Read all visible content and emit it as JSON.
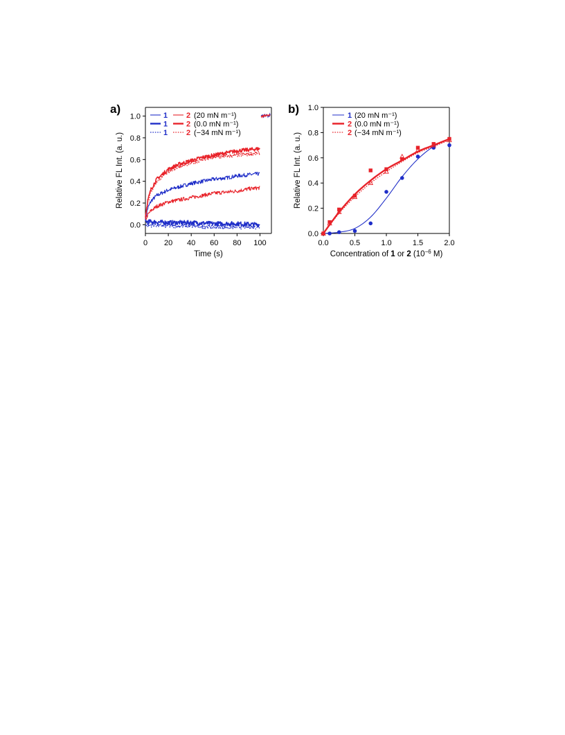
{
  "colors": {
    "blue": "#1f2ec8",
    "red": "#e8232a"
  },
  "chart_data": [
    {
      "panel": "a)",
      "type": "line",
      "xlabel": "Time (s)",
      "ylabel": "Relative FL Int. (a. u.)",
      "xlim": [
        0,
        110
      ],
      "ylim": [
        -0.08,
        1.08
      ],
      "xticks": [
        "0",
        "20",
        "40",
        "60",
        "80",
        "100"
      ],
      "yticks": [
        "0.0",
        "0.2",
        "0.4",
        "0.6",
        "0.8",
        "1.0"
      ],
      "grid": false,
      "legend_position": "top-left",
      "legend": [
        {
          "a": "1",
          "b": "2",
          "label": "(20 mN m⁻¹)",
          "style": "thin-solid"
        },
        {
          "a": "1",
          "b": "2",
          "label": "(0.0 mN m⁻¹)",
          "style": "thick-solid"
        },
        {
          "a": "1",
          "b": "2",
          "label": "(−34 mN m⁻¹)",
          "style": "dotted"
        }
      ],
      "series": [
        {
          "legend_index": 0,
          "compound": "1",
          "color": "blue",
          "style": "thin-solid",
          "x": [
            0,
            2,
            5,
            10,
            20,
            30,
            40,
            50,
            60,
            70,
            80,
            90,
            100
          ],
          "y": [
            0.05,
            0.15,
            0.22,
            0.27,
            0.32,
            0.35,
            0.38,
            0.4,
            0.42,
            0.43,
            0.45,
            0.46,
            0.47
          ]
        },
        {
          "legend_index": 0,
          "compound": "2",
          "color": "red",
          "style": "thin-solid",
          "x": [
            0,
            2,
            5,
            10,
            20,
            30,
            40,
            50,
            60,
            70,
            80,
            90,
            100
          ],
          "y": [
            0.04,
            0.09,
            0.13,
            0.17,
            0.21,
            0.23,
            0.25,
            0.27,
            0.29,
            0.3,
            0.31,
            0.33,
            0.34
          ]
        },
        {
          "legend_index": 1,
          "compound": "1",
          "color": "blue",
          "style": "thick-solid",
          "x": [
            0,
            20,
            40,
            60,
            80,
            100
          ],
          "y": [
            0.03,
            0.02,
            0.02,
            0.01,
            0.01,
            0.0
          ]
        },
        {
          "legend_index": 1,
          "compound": "2",
          "color": "red",
          "style": "thick-solid",
          "x": [
            0,
            2,
            5,
            10,
            20,
            30,
            40,
            50,
            60,
            70,
            80,
            90,
            100
          ],
          "y": [
            0.08,
            0.22,
            0.33,
            0.42,
            0.51,
            0.56,
            0.59,
            0.62,
            0.64,
            0.66,
            0.68,
            0.69,
            0.7
          ]
        },
        {
          "legend_index": 2,
          "compound": "1",
          "color": "blue",
          "style": "dotted",
          "x": [
            0,
            20,
            40,
            60,
            80,
            100
          ],
          "y": [
            0.0,
            -0.01,
            -0.01,
            -0.02,
            -0.02,
            -0.02
          ]
        },
        {
          "legend_index": 2,
          "compound": "2",
          "color": "red",
          "style": "dotted",
          "x": [
            0,
            2,
            5,
            10,
            20,
            30,
            40,
            50,
            60,
            70,
            80,
            90,
            100
          ],
          "y": [
            0.07,
            0.2,
            0.31,
            0.4,
            0.49,
            0.54,
            0.57,
            0.6,
            0.62,
            0.63,
            0.64,
            0.65,
            0.66
          ]
        },
        {
          "compound": "reference",
          "color": "mixed",
          "style": "thin-solid",
          "x": [
            101,
            103,
            105,
            107,
            109
          ],
          "y": [
            1.0,
            1.0,
            1.01,
            1.0,
            1.01
          ]
        }
      ]
    },
    {
      "panel": "b)",
      "type": "scatter",
      "xlabel": "Concentration of 1 or 2 (10⁻⁶ M)",
      "xlabel_parts": [
        "Concentration of ",
        "1",
        " or ",
        "2",
        " (10",
        "−6",
        " M)"
      ],
      "ylabel": "Relative FL Int. (a. u.)",
      "xlim": [
        0,
        2.0
      ],
      "ylim": [
        0,
        1.0
      ],
      "xticks": [
        "0.0",
        "0.5",
        "1.0",
        "1.5",
        "2.0"
      ],
      "yticks": [
        "0.0",
        "0.2",
        "0.4",
        "0.6",
        "0.8",
        "1.0"
      ],
      "grid": false,
      "legend_position": "top-left",
      "legend": [
        {
          "a": "1",
          "label": "(20 mN m⁻¹)",
          "color": "blue",
          "style": "thin-solid"
        },
        {
          "a": "2",
          "label": "(0.0 mN m⁻¹)",
          "color": "red",
          "style": "thick-solid"
        },
        {
          "a": "2",
          "label": "(−34 mN m⁻¹)",
          "color": "red",
          "style": "dotted"
        }
      ],
      "series": [
        {
          "legend_index": 0,
          "compound": "1",
          "color": "blue",
          "marker": "circle",
          "style": "thin-solid",
          "x": [
            0.1,
            0.25,
            0.5,
            0.75,
            1.0,
            1.25,
            1.5,
            1.75,
            2.0
          ],
          "y": [
            0.0,
            0.01,
            0.02,
            0.08,
            0.33,
            0.44,
            0.61,
            0.68,
            0.7
          ],
          "fit_x": [
            0.0,
            0.25,
            0.5,
            0.75,
            1.0,
            1.25,
            1.5,
            1.75,
            2.0
          ],
          "fit_y": [
            0.0,
            0.01,
            0.04,
            0.13,
            0.28,
            0.45,
            0.59,
            0.69,
            0.75
          ]
        },
        {
          "legend_index": 1,
          "compound": "2",
          "color": "red",
          "marker": "square",
          "style": "thick-solid",
          "x": [
            0.0,
            0.1,
            0.25,
            0.5,
            0.75,
            1.0,
            1.25,
            1.5,
            1.75,
            2.0
          ],
          "y": [
            0.0,
            0.09,
            0.19,
            0.3,
            0.5,
            0.51,
            0.59,
            0.68,
            0.71,
            0.75
          ],
          "fit_x": [
            0.0,
            0.25,
            0.5,
            0.75,
            1.0,
            1.25,
            1.5,
            1.75,
            2.0
          ],
          "fit_y": [
            0.0,
            0.17,
            0.31,
            0.42,
            0.51,
            0.58,
            0.65,
            0.7,
            0.75
          ]
        },
        {
          "legend_index": 2,
          "compound": "2",
          "color": "red",
          "marker": "triangle-open",
          "style": "dotted",
          "x": [
            0.0,
            0.1,
            0.25,
            0.5,
            0.75,
            1.0,
            1.25,
            1.5,
            1.75,
            2.0
          ],
          "y": [
            0.0,
            0.08,
            0.17,
            0.29,
            0.4,
            0.49,
            0.61,
            0.66,
            0.7,
            0.74
          ],
          "fit_x": [
            0.0,
            0.25,
            0.5,
            0.75,
            1.0,
            1.25,
            1.5,
            1.75,
            2.0
          ],
          "fit_y": [
            0.0,
            0.16,
            0.29,
            0.4,
            0.49,
            0.57,
            0.64,
            0.69,
            0.74
          ]
        }
      ]
    }
  ]
}
